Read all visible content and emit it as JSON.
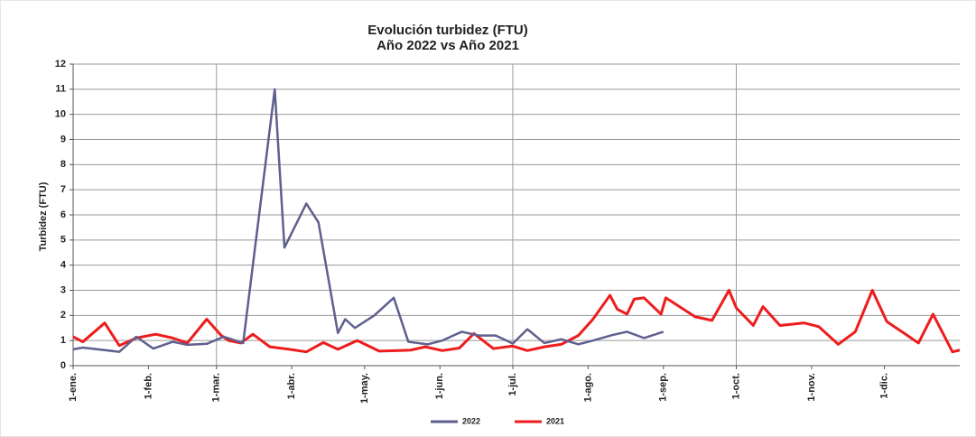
{
  "chart_data": {
    "type": "line",
    "title": "Evolución turbidez (FTU)",
    "subtitle": "Año 2022 vs Año 2021",
    "y_label": "Turbidez (FTU)",
    "xlim": [
      0,
      365
    ],
    "xticks": [
      {
        "value": 0,
        "label": "1-ene."
      },
      {
        "value": 31,
        "label": "1-feb."
      },
      {
        "value": 59,
        "label": "1-mar."
      },
      {
        "value": 90,
        "label": "1-abr."
      },
      {
        "value": 120,
        "label": "1-may."
      },
      {
        "value": 151,
        "label": "1-jun."
      },
      {
        "value": 181,
        "label": "1-jul."
      },
      {
        "value": 212,
        "label": "1-ago."
      },
      {
        "value": 243,
        "label": "1-sep."
      },
      {
        "value": 273,
        "label": "1-oct."
      },
      {
        "value": 304,
        "label": "1-nov."
      },
      {
        "value": 334,
        "label": "1-dic."
      }
    ],
    "ylim": [
      0,
      12
    ],
    "yticks": [
      0,
      1,
      2,
      3,
      4,
      5,
      6,
      7,
      8,
      9,
      10,
      11,
      12
    ],
    "grid": true,
    "legend": "bottom",
    "series": [
      {
        "name": "2022",
        "color": "#5f5f8f",
        "x": [
          0,
          4,
          13,
          19,
          26,
          33,
          41,
          47,
          55,
          62,
          70,
          83,
          87,
          96,
          101,
          109,
          112,
          116,
          124,
          132,
          138,
          146,
          152,
          160,
          167,
          174,
          181,
          187,
          194,
          201,
          208,
          214,
          222,
          228,
          235,
          243
        ],
        "values": [
          0.65,
          0.72,
          0.62,
          0.55,
          1.15,
          0.68,
          0.95,
          0.83,
          0.87,
          1.15,
          0.9,
          11.0,
          4.7,
          6.45,
          5.7,
          1.3,
          1.85,
          1.5,
          2.0,
          2.7,
          0.95,
          0.85,
          1.0,
          1.35,
          1.2,
          1.2,
          0.88,
          1.45,
          0.9,
          1.05,
          0.85,
          1.0,
          1.22,
          1.35,
          1.1,
          1.35
        ]
      },
      {
        "name": "2021",
        "color": "#ee1c1c",
        "x": [
          0,
          4,
          13,
          19,
          26,
          34,
          41,
          47,
          55,
          61,
          64,
          69,
          74,
          81,
          89,
          96,
          103,
          109,
          117,
          126,
          134,
          139,
          145,
          152,
          159,
          165,
          173,
          181,
          187,
          194,
          201,
          208,
          214,
          221,
          224,
          228,
          231,
          235,
          242,
          244,
          256,
          263,
          270,
          273,
          280,
          284,
          291,
          301,
          307,
          315,
          322,
          329,
          335,
          342,
          348,
          354,
          362,
          365
        ],
        "values": [
          1.15,
          0.95,
          1.7,
          0.8,
          1.1,
          1.25,
          1.1,
          0.9,
          1.85,
          1.2,
          1.0,
          0.9,
          1.25,
          0.75,
          0.65,
          0.55,
          0.92,
          0.65,
          1.0,
          0.58,
          0.6,
          0.62,
          0.75,
          0.6,
          0.7,
          1.28,
          0.68,
          0.78,
          0.6,
          0.75,
          0.85,
          1.2,
          1.85,
          2.8,
          2.25,
          2.05,
          2.65,
          2.7,
          2.05,
          2.7,
          1.95,
          1.8,
          3.0,
          2.3,
          1.6,
          2.35,
          1.6,
          1.7,
          1.55,
          0.85,
          1.35,
          3.0,
          1.75,
          1.3,
          0.9,
          2.05,
          0.55,
          0.62
        ]
      }
    ]
  }
}
